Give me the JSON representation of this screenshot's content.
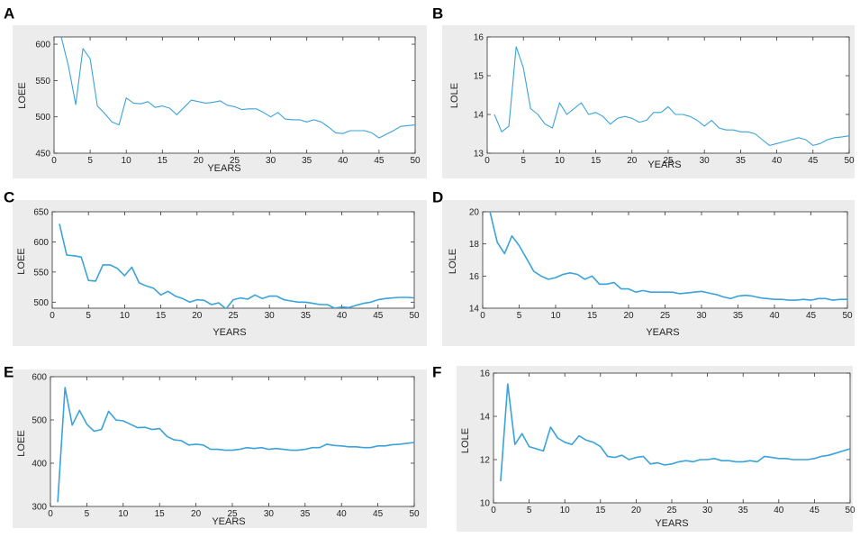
{
  "colors": {
    "panel_bg": "#ececec",
    "plot_bg": "#ffffff",
    "line": "#3aa3d9",
    "axis": "#333333"
  },
  "chart_data": [
    {
      "panel": "A",
      "type": "line",
      "xlabel": "YEARS",
      "ylabel": "LOEE",
      "xlim": [
        0,
        50
      ],
      "ylim": [
        450,
        610
      ],
      "xticks": [
        "0",
        "5",
        "10",
        "15",
        "20",
        "25",
        "30",
        "35",
        "40",
        "45",
        "50"
      ],
      "yticks": [
        "450",
        "500",
        "550",
        "600"
      ],
      "x": [
        1,
        2,
        3,
        4,
        5,
        6,
        7,
        8,
        9,
        10,
        11,
        12,
        13,
        14,
        15,
        16,
        17,
        18,
        19,
        20,
        21,
        22,
        23,
        24,
        25,
        26,
        27,
        28,
        29,
        30,
        31,
        32,
        33,
        34,
        35,
        36,
        37,
        38,
        39,
        40,
        41,
        42,
        43,
        44,
        45,
        46,
        47,
        48,
        49,
        50
      ],
      "y": [
        610,
        570,
        517,
        594,
        580,
        515,
        505,
        493,
        489,
        526,
        519,
        518,
        521,
        513,
        515,
        512,
        503,
        513,
        523,
        521,
        519,
        520,
        522,
        516,
        514,
        510,
        511,
        511,
        506,
        500,
        506,
        497,
        496,
        496,
        493,
        496,
        493,
        486,
        478,
        477,
        481,
        481,
        481,
        478,
        471,
        476,
        481,
        487,
        488,
        489
      ]
    },
    {
      "panel": "B",
      "type": "line",
      "xlabel": "YEARS",
      "ylabel": "LOLE",
      "xlim": [
        0,
        50
      ],
      "ylim": [
        13,
        16
      ],
      "xticks": [
        "0",
        "5",
        "10",
        "15",
        "20",
        "25",
        "30",
        "35",
        "40",
        "45",
        "50"
      ],
      "yticks": [
        "13",
        "14",
        "15",
        "16"
      ],
      "x": [
        1,
        2,
        3,
        4,
        5,
        6,
        7,
        8,
        9,
        10,
        11,
        12,
        13,
        14,
        15,
        16,
        17,
        18,
        19,
        20,
        21,
        22,
        23,
        24,
        25,
        26,
        27,
        28,
        29,
        30,
        31,
        32,
        33,
        34,
        35,
        36,
        37,
        38,
        39,
        40,
        41,
        42,
        43,
        44,
        45,
        46,
        47,
        48,
        49,
        50
      ],
      "y": [
        14.0,
        13.55,
        13.7,
        15.75,
        15.2,
        14.15,
        14.0,
        13.75,
        13.65,
        14.3,
        14.0,
        14.15,
        14.3,
        14.0,
        14.05,
        13.95,
        13.75,
        13.9,
        13.95,
        13.9,
        13.8,
        13.85,
        14.05,
        14.05,
        14.2,
        14.0,
        14.0,
        13.95,
        13.85,
        13.7,
        13.85,
        13.65,
        13.6,
        13.6,
        13.55,
        13.55,
        13.5,
        13.35,
        13.2,
        13.25,
        13.3,
        13.35,
        13.4,
        13.35,
        13.2,
        13.25,
        13.35,
        13.4,
        13.42,
        13.45
      ]
    },
    {
      "panel": "C",
      "type": "line",
      "xlabel": "YEARS",
      "ylabel": "LOEE",
      "xlim": [
        0,
        50
      ],
      "ylim": [
        490,
        650
      ],
      "xticks": [
        "0",
        "5",
        "10",
        "15",
        "20",
        "25",
        "30",
        "35",
        "40",
        "45",
        "50"
      ],
      "yticks": [
        "500",
        "550",
        "600",
        "650"
      ],
      "x": [
        1,
        2,
        3,
        4,
        5,
        6,
        7,
        8,
        9,
        10,
        11,
        12,
        13,
        14,
        15,
        16,
        17,
        18,
        19,
        20,
        21,
        22,
        23,
        24,
        25,
        26,
        27,
        28,
        29,
        30,
        31,
        32,
        33,
        34,
        35,
        36,
        37,
        38,
        39,
        40,
        41,
        42,
        43,
        44,
        45,
        46,
        47,
        48,
        49,
        50
      ],
      "y": [
        630,
        578,
        577,
        575,
        536,
        535,
        562,
        562,
        556,
        544,
        558,
        532,
        527,
        523,
        512,
        518,
        510,
        506,
        500,
        504,
        503,
        496,
        499,
        489,
        504,
        507,
        505,
        512,
        506,
        510,
        510,
        504,
        502,
        500,
        500,
        498,
        496,
        496,
        490,
        492,
        491,
        495,
        498,
        500,
        504,
        506,
        507,
        508,
        508,
        507
      ]
    },
    {
      "panel": "D",
      "type": "line",
      "xlabel": "YEARS",
      "ylabel": "LOLE",
      "xlim": [
        0,
        50
      ],
      "ylim": [
        14,
        20
      ],
      "xticks": [
        "0",
        "5",
        "10",
        "15",
        "20",
        "25",
        "30",
        "35",
        "40",
        "45",
        "50"
      ],
      "yticks": [
        "14",
        "16",
        "18",
        "20"
      ],
      "x": [
        1,
        2,
        3,
        4,
        5,
        6,
        7,
        8,
        9,
        10,
        11,
        12,
        13,
        14,
        15,
        16,
        17,
        18,
        19,
        20,
        21,
        22,
        23,
        24,
        25,
        26,
        27,
        28,
        29,
        30,
        31,
        32,
        33,
        34,
        35,
        36,
        37,
        38,
        39,
        40,
        41,
        42,
        43,
        44,
        45,
        46,
        47,
        48,
        49,
        50
      ],
      "y": [
        20.0,
        18.1,
        17.4,
        18.5,
        17.9,
        17.1,
        16.3,
        16.0,
        15.8,
        15.9,
        16.1,
        16.2,
        16.1,
        15.8,
        16.0,
        15.5,
        15.5,
        15.6,
        15.2,
        15.2,
        15.0,
        15.1,
        15.0,
        15.0,
        15.0,
        15.0,
        14.9,
        14.95,
        15.0,
        15.05,
        14.95,
        14.85,
        14.7,
        14.6,
        14.75,
        14.8,
        14.75,
        14.65,
        14.6,
        14.55,
        14.55,
        14.5,
        14.5,
        14.55,
        14.5,
        14.6,
        14.6,
        14.5,
        14.55,
        14.55
      ]
    },
    {
      "panel": "E",
      "type": "line",
      "xlabel": "YEARS",
      "ylabel": "LOEE",
      "xlim": [
        0,
        50
      ],
      "ylim": [
        300,
        600
      ],
      "xticks": [
        "0",
        "5",
        "10",
        "15",
        "20",
        "25",
        "30",
        "35",
        "40",
        "45",
        "50"
      ],
      "yticks": [
        "300",
        "400",
        "500",
        "600"
      ],
      "x": [
        1,
        2,
        3,
        4,
        5,
        6,
        7,
        8,
        9,
        10,
        11,
        12,
        13,
        14,
        15,
        16,
        17,
        18,
        19,
        20,
        21,
        22,
        23,
        24,
        25,
        26,
        27,
        28,
        29,
        30,
        31,
        32,
        33,
        34,
        35,
        36,
        37,
        38,
        39,
        40,
        41,
        42,
        43,
        44,
        45,
        46,
        47,
        48,
        49,
        50
      ],
      "y": [
        310,
        575,
        488,
        522,
        490,
        474,
        478,
        520,
        500,
        498,
        490,
        482,
        483,
        478,
        480,
        462,
        454,
        452,
        442,
        444,
        442,
        432,
        432,
        430,
        430,
        432,
        436,
        434,
        436,
        432,
        434,
        432,
        430,
        430,
        432,
        436,
        436,
        444,
        441,
        440,
        438,
        438,
        436,
        436,
        440,
        440,
        443,
        444,
        446,
        448
      ]
    },
    {
      "panel": "F",
      "type": "line",
      "xlabel": "YEARS",
      "ylabel": "LOLE",
      "xlim": [
        0,
        50
      ],
      "ylim": [
        10,
        16
      ],
      "xticks": [
        "0",
        "5",
        "10",
        "15",
        "20",
        "25",
        "30",
        "35",
        "40",
        "45",
        "50"
      ],
      "yticks": [
        "10",
        "12",
        "14",
        "16"
      ],
      "x": [
        1,
        2,
        3,
        4,
        5,
        6,
        7,
        8,
        9,
        10,
        11,
        12,
        13,
        14,
        15,
        16,
        17,
        18,
        19,
        20,
        21,
        22,
        23,
        24,
        25,
        26,
        27,
        28,
        29,
        30,
        31,
        32,
        33,
        34,
        35,
        36,
        37,
        38,
        39,
        40,
        41,
        42,
        43,
        44,
        45,
        46,
        47,
        48,
        49,
        50
      ],
      "y": [
        11.0,
        15.5,
        12.7,
        13.2,
        12.6,
        12.5,
        12.4,
        13.5,
        13.0,
        12.8,
        12.7,
        13.1,
        12.9,
        12.8,
        12.6,
        12.15,
        12.1,
        12.2,
        12.0,
        12.1,
        12.15,
        11.8,
        11.85,
        11.75,
        11.8,
        11.9,
        11.95,
        11.9,
        12.0,
        12.0,
        12.05,
        11.95,
        11.95,
        11.9,
        11.9,
        11.95,
        11.9,
        12.15,
        12.1,
        12.05,
        12.05,
        12.0,
        12.0,
        12.0,
        12.05,
        12.15,
        12.2,
        12.3,
        12.4,
        12.5
      ]
    }
  ]
}
